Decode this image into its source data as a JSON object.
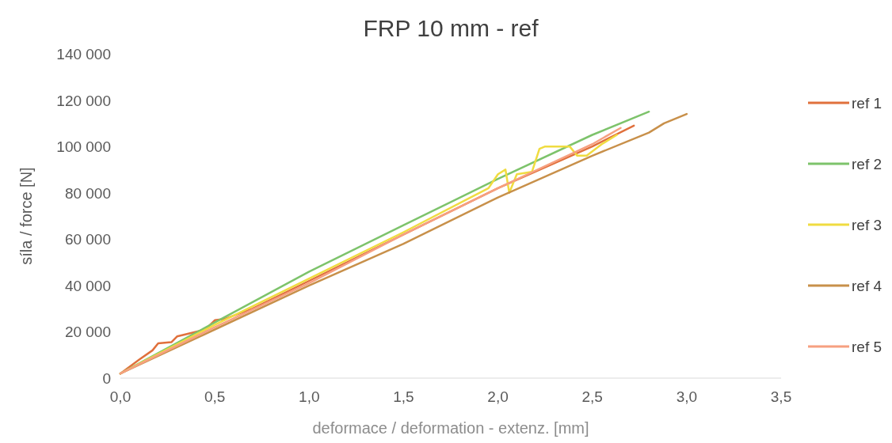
{
  "chart_data": {
    "type": "line",
    "title": "FRP 10 mm - ref",
    "xlabel": "deformace / deformation - extenz. [mm]",
    "ylabel": "síla / force [N]",
    "xlim": [
      0,
      3.5
    ],
    "ylim": [
      0,
      140000
    ],
    "xticks": [
      {
        "value": 0,
        "label": "0,0"
      },
      {
        "value": 0.5,
        "label": "0,5"
      },
      {
        "value": 1,
        "label": "1,0"
      },
      {
        "value": 1.5,
        "label": "1,5"
      },
      {
        "value": 2,
        "label": "2,0"
      },
      {
        "value": 2.5,
        "label": "2,5"
      },
      {
        "value": 3,
        "label": "3,0"
      },
      {
        "value": 3.5,
        "label": "3,5"
      }
    ],
    "yticks": [
      0,
      {
        "value": 20000,
        "label": "20 000"
      },
      {
        "value": 40000,
        "label": "40 000"
      },
      {
        "value": 60000,
        "label": "60 000"
      },
      {
        "value": 80000,
        "label": "80 000"
      },
      {
        "value": 100000,
        "label": "100 000"
      },
      {
        "value": 120000,
        "label": "120 000"
      },
      {
        "value": 140000,
        "label": "140 000"
      }
    ],
    "legend": "right",
    "grid": false,
    "line_style": "solid",
    "series": [
      {
        "name": "ref 1",
        "color": "#e0703c",
        "x": [
          0,
          0.1,
          0.17,
          0.2,
          0.27,
          0.3,
          0.4,
          0.45,
          0.5,
          0.55,
          0.7,
          1.0,
          1.5,
          2.0,
          2.5,
          2.72
        ],
        "values": [
          2000,
          8000,
          12000,
          15000,
          15500,
          18000,
          20000,
          21000,
          25000,
          25500,
          30000,
          42000,
          62000,
          82000,
          100000,
          109000
        ]
      },
      {
        "name": "ref 2",
        "color": "#7dc36b",
        "x": [
          0,
          0.5,
          1.0,
          1.5,
          2.0,
          2.5,
          2.8
        ],
        "values": [
          2000,
          24000,
          46000,
          66000,
          86000,
          105000,
          115000
        ]
      },
      {
        "name": "ref 3",
        "color": "#f0dc40",
        "x": [
          0,
          0.5,
          1.0,
          1.5,
          1.95,
          2.0,
          2.04,
          2.06,
          2.1,
          2.18,
          2.22,
          2.25,
          2.3,
          2.38,
          2.42,
          2.47,
          2.55,
          2.63
        ],
        "values": [
          2000,
          23000,
          43000,
          63000,
          82000,
          88000,
          90000,
          80000,
          88000,
          89000,
          99000,
          100000,
          100000,
          100000,
          96000,
          96000,
          101000,
          105000
        ]
      },
      {
        "name": "ref 4",
        "color": "#c8904a",
        "x": [
          0,
          0.5,
          1.0,
          1.5,
          2.0,
          2.5,
          2.8,
          2.88,
          3.0
        ],
        "values": [
          2000,
          21000,
          40000,
          58000,
          78000,
          96000,
          106000,
          110000,
          114000
        ]
      },
      {
        "name": "ref 5",
        "color": "#f6a080",
        "x": [
          0,
          0.5,
          1.0,
          1.5,
          2.0,
          2.5,
          2.65
        ],
        "values": [
          2000,
          22000,
          41000,
          62000,
          82000,
          101000,
          108000
        ]
      }
    ]
  }
}
